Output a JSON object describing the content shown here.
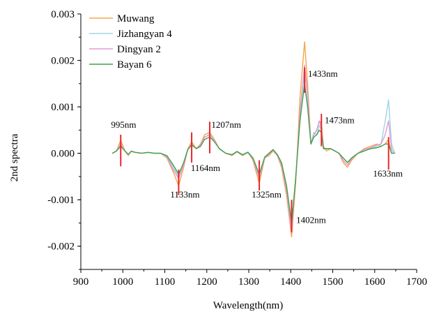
{
  "chart_data": {
    "type": "line",
    "xlabel": "Wavelength(nm)",
    "ylabel": "2nd spectra",
    "xlim": [
      900,
      1700
    ],
    "ylim": [
      -0.0025,
      0.003
    ],
    "x_ticks": [
      900,
      1000,
      1100,
      1200,
      1300,
      1400,
      1500,
      1600,
      1700
    ],
    "x_tick_labels": [
      "900",
      "1000",
      "1100",
      "1200",
      "1300",
      "1400",
      "1500",
      "1600",
      "1700"
    ],
    "y_ticks": [
      -0.002,
      -0.001,
      0.0,
      0.001,
      0.002,
      0.003
    ],
    "y_tick_labels": [
      "-0.002",
      "-0.001",
      "0.000",
      "0.001",
      "0.002",
      "0.003"
    ],
    "legend_position": "top-left",
    "series": [
      {
        "name": "Muwang",
        "color": "#f5a54a",
        "points": [
          [
            975,
            0.0
          ],
          [
            985,
            5e-05
          ],
          [
            995,
            0.00028
          ],
          [
            1005,
            5e-05
          ],
          [
            1013,
            -5e-05
          ],
          [
            1020,
            5e-05
          ],
          [
            1030,
            2e-05
          ],
          [
            1045,
            0.0
          ],
          [
            1060,
            2e-05
          ],
          [
            1075,
            0.0
          ],
          [
            1090,
            0.0
          ],
          [
            1105,
            -0.0001
          ],
          [
            1120,
            -0.0004
          ],
          [
            1133,
            -0.0007
          ],
          [
            1145,
            -0.0003
          ],
          [
            1155,
            0.0001
          ],
          [
            1164,
            0.00025
          ],
          [
            1175,
            0.0001
          ],
          [
            1185,
            0.0002
          ],
          [
            1195,
            0.0004
          ],
          [
            1207,
            0.00045
          ],
          [
            1218,
            0.0003
          ],
          [
            1230,
            0.0001
          ],
          [
            1245,
            0.0
          ],
          [
            1260,
            -5e-05
          ],
          [
            1272,
            3e-05
          ],
          [
            1285,
            -5e-05
          ],
          [
            1298,
            2e-05
          ],
          [
            1310,
            -0.00015
          ],
          [
            1325,
            -0.00065
          ],
          [
            1338,
            -0.0001
          ],
          [
            1348,
            -5e-05
          ],
          [
            1358,
            5e-05
          ],
          [
            1368,
            -5e-05
          ],
          [
            1378,
            -0.0003
          ],
          [
            1390,
            -0.0009
          ],
          [
            1402,
            -0.0018
          ],
          [
            1412,
            -0.0006
          ],
          [
            1422,
            0.0012
          ],
          [
            1433,
            0.0024
          ],
          [
            1440,
            0.0015
          ],
          [
            1448,
            0.0002
          ],
          [
            1455,
            0.0004
          ],
          [
            1462,
            0.0005
          ],
          [
            1468,
            0.0007
          ],
          [
            1473,
            0.00065
          ],
          [
            1478,
            0.00015
          ],
          [
            1485,
            5e-05
          ],
          [
            1495,
            0.0001
          ],
          [
            1505,
            5e-05
          ],
          [
            1515,
            0.0
          ],
          [
            1525,
            -0.0002
          ],
          [
            1535,
            -0.0003
          ],
          [
            1545,
            -0.00015
          ],
          [
            1560,
            0.0
          ],
          [
            1575,
            0.0001
          ],
          [
            1590,
            0.00015
          ],
          [
            1605,
            0.0002
          ],
          [
            1615,
            0.00015
          ],
          [
            1625,
            0.0002
          ],
          [
            1633,
            0.0003
          ],
          [
            1640,
            0.0
          ]
        ]
      },
      {
        "name": "Jizhangyan 4",
        "color": "#9ed6e3",
        "points": [
          [
            975,
            0.0
          ],
          [
            985,
            5e-05
          ],
          [
            995,
            0.00018
          ],
          [
            1005,
            5e-05
          ],
          [
            1013,
            -3e-05
          ],
          [
            1020,
            5e-05
          ],
          [
            1030,
            2e-05
          ],
          [
            1045,
            0.0
          ],
          [
            1060,
            2e-05
          ],
          [
            1075,
            0.0
          ],
          [
            1090,
            0.0
          ],
          [
            1105,
            -5e-05
          ],
          [
            1120,
            -0.0003
          ],
          [
            1133,
            -0.0005
          ],
          [
            1145,
            -0.0002
          ],
          [
            1155,
            0.0001
          ],
          [
            1164,
            0.0002
          ],
          [
            1175,
            0.0001
          ],
          [
            1185,
            0.00015
          ],
          [
            1195,
            0.00035
          ],
          [
            1207,
            0.0004
          ],
          [
            1218,
            0.00028
          ],
          [
            1230,
            0.0001
          ],
          [
            1245,
            0.0
          ],
          [
            1260,
            -3e-05
          ],
          [
            1272,
            4e-05
          ],
          [
            1285,
            -3e-05
          ],
          [
            1298,
            3e-05
          ],
          [
            1310,
            -0.0001
          ],
          [
            1325,
            -0.0005
          ],
          [
            1338,
            -8e-05
          ],
          [
            1348,
            0.0
          ],
          [
            1358,
            8e-05
          ],
          [
            1368,
            -3e-05
          ],
          [
            1378,
            -0.0002
          ],
          [
            1390,
            -0.0007
          ],
          [
            1402,
            -0.0016
          ],
          [
            1412,
            -0.0005
          ],
          [
            1422,
            0.0008
          ],
          [
            1433,
            0.0018
          ],
          [
            1440,
            0.0012
          ],
          [
            1448,
            0.0002
          ],
          [
            1455,
            0.00045
          ],
          [
            1462,
            0.0004
          ],
          [
            1468,
            0.0006
          ],
          [
            1473,
            0.0005
          ],
          [
            1478,
            0.0001
          ],
          [
            1485,
            0.0001
          ],
          [
            1495,
            0.0001
          ],
          [
            1505,
            5e-05
          ],
          [
            1515,
            0.0
          ],
          [
            1525,
            -0.0001
          ],
          [
            1535,
            -0.0002
          ],
          [
            1545,
            -0.0001
          ],
          [
            1560,
            0.0
          ],
          [
            1575,
            5e-05
          ],
          [
            1590,
            0.0001
          ],
          [
            1605,
            0.00015
          ],
          [
            1615,
            0.0002
          ],
          [
            1625,
            0.0007
          ],
          [
            1633,
            0.00115
          ],
          [
            1640,
            0.0002
          ],
          [
            1648,
            0.0
          ]
        ]
      },
      {
        "name": "Dingyan 2",
        "color": "#e39ad6",
        "points": [
          [
            975,
            0.0
          ],
          [
            985,
            5e-05
          ],
          [
            995,
            0.0002
          ],
          [
            1005,
            5e-05
          ],
          [
            1013,
            -3e-05
          ],
          [
            1020,
            5e-05
          ],
          [
            1030,
            2e-05
          ],
          [
            1045,
            0.0
          ],
          [
            1060,
            2e-05
          ],
          [
            1075,
            0.0
          ],
          [
            1090,
            0.0
          ],
          [
            1105,
            -8e-05
          ],
          [
            1120,
            -0.00035
          ],
          [
            1133,
            -0.00055
          ],
          [
            1145,
            -0.00025
          ],
          [
            1155,
            0.0001
          ],
          [
            1164,
            0.0002
          ],
          [
            1175,
            0.0001
          ],
          [
            1185,
            0.00018
          ],
          [
            1195,
            0.00035
          ],
          [
            1207,
            0.0004
          ],
          [
            1218,
            0.00028
          ],
          [
            1230,
            0.0001
          ],
          [
            1245,
            0.0
          ],
          [
            1260,
            -4e-05
          ],
          [
            1272,
            3e-05
          ],
          [
            1285,
            -4e-05
          ],
          [
            1298,
            2e-05
          ],
          [
            1310,
            -0.00012
          ],
          [
            1325,
            -0.00055
          ],
          [
            1338,
            -0.0001
          ],
          [
            1348,
            -2e-05
          ],
          [
            1358,
            6e-05
          ],
          [
            1368,
            -4e-05
          ],
          [
            1378,
            -0.00025
          ],
          [
            1390,
            -0.0008
          ],
          [
            1402,
            -0.0017
          ],
          [
            1412,
            -0.0005
          ],
          [
            1422,
            0.0009
          ],
          [
            1433,
            0.0019
          ],
          [
            1440,
            0.0013
          ],
          [
            1448,
            0.0002
          ],
          [
            1455,
            0.0004
          ],
          [
            1462,
            0.0005
          ],
          [
            1468,
            0.0007
          ],
          [
            1473,
            0.00055
          ],
          [
            1478,
            0.0001
          ],
          [
            1485,
            0.0001
          ],
          [
            1495,
            0.0001
          ],
          [
            1505,
            5e-05
          ],
          [
            1515,
            0.0
          ],
          [
            1525,
            -0.00015
          ],
          [
            1535,
            -0.00025
          ],
          [
            1545,
            -0.00012
          ],
          [
            1560,
            0.0
          ],
          [
            1575,
            8e-05
          ],
          [
            1590,
            0.00012
          ],
          [
            1605,
            0.00018
          ],
          [
            1615,
            0.0002
          ],
          [
            1625,
            0.0004
          ],
          [
            1633,
            0.0007
          ],
          [
            1640,
            0.0001
          ],
          [
            1645,
            0.0
          ]
        ]
      },
      {
        "name": "Bayan 6",
        "color": "#3fa14a",
        "points": [
          [
            975,
            0.0
          ],
          [
            985,
            5e-05
          ],
          [
            995,
            0.00015
          ],
          [
            1005,
            5e-05
          ],
          [
            1013,
            -2e-05
          ],
          [
            1020,
            4e-05
          ],
          [
            1030,
            2e-05
          ],
          [
            1045,
            0.0
          ],
          [
            1060,
            2e-05
          ],
          [
            1075,
            0.0
          ],
          [
            1090,
            0.0
          ],
          [
            1105,
            -5e-05
          ],
          [
            1120,
            -0.00025
          ],
          [
            1133,
            -0.00045
          ],
          [
            1145,
            -0.0002
          ],
          [
            1155,
            8e-05
          ],
          [
            1164,
            0.00018
          ],
          [
            1175,
            0.0001
          ],
          [
            1185,
            0.00015
          ],
          [
            1195,
            0.0003
          ],
          [
            1207,
            0.00035
          ],
          [
            1218,
            0.00025
          ],
          [
            1230,
            0.0001
          ],
          [
            1245,
            0.0
          ],
          [
            1260,
            -3e-05
          ],
          [
            1272,
            4e-05
          ],
          [
            1285,
            -3e-05
          ],
          [
            1298,
            2e-05
          ],
          [
            1310,
            -0.0001
          ],
          [
            1325,
            -0.00045
          ],
          [
            1338,
            -8e-05
          ],
          [
            1348,
            0.0
          ],
          [
            1358,
            8e-05
          ],
          [
            1368,
            -3e-05
          ],
          [
            1378,
            -0.0002
          ],
          [
            1390,
            -0.0007
          ],
          [
            1402,
            -0.0015
          ],
          [
            1412,
            -0.0005
          ],
          [
            1422,
            0.0007
          ],
          [
            1433,
            0.0015
          ],
          [
            1440,
            0.001
          ],
          [
            1448,
            0.0002
          ],
          [
            1455,
            0.00035
          ],
          [
            1462,
            0.0004
          ],
          [
            1468,
            0.0005
          ],
          [
            1473,
            0.00045
          ],
          [
            1478,
            0.0001
          ],
          [
            1485,
            0.0001
          ],
          [
            1495,
            0.0001
          ],
          [
            1505,
            5e-05
          ],
          [
            1515,
            0.0
          ],
          [
            1525,
            -0.0001
          ],
          [
            1535,
            -0.0002
          ],
          [
            1545,
            -0.0001
          ],
          [
            1560,
            0.0
          ],
          [
            1575,
            5e-05
          ],
          [
            1590,
            0.0001
          ],
          [
            1605,
            0.00012
          ],
          [
            1615,
            0.00015
          ],
          [
            1625,
            0.0002
          ],
          [
            1633,
            0.0002
          ],
          [
            1640,
            0.0
          ],
          [
            1648,
            0.0
          ]
        ]
      }
    ],
    "markers": {
      "color": "#e8272a",
      "items": [
        {
          "x": 995,
          "y1": -0.00028,
          "y2": 0.0004,
          "label": "995nm",
          "label_x": 972,
          "label_y": 0.00055
        },
        {
          "x": 1133,
          "y1": -0.0009,
          "y2": -0.00035,
          "label": "1133nm",
          "label_x": 1113,
          "label_y": -0.00095
        },
        {
          "x": 1164,
          "y1": -0.0002,
          "y2": 0.00045,
          "label": "1164nm",
          "label_x": 1162,
          "label_y": -0.00038
        },
        {
          "x": 1207,
          "y1": 0.0,
          "y2": 0.00068,
          "label": "1207nm",
          "label_x": 1211,
          "label_y": 0.00055
        },
        {
          "x": 1325,
          "y1": -0.0008,
          "y2": -0.00015,
          "label": "1325nm",
          "label_x": 1307,
          "label_y": -0.00095
        },
        {
          "x": 1402,
          "y1": -0.0017,
          "y2": -0.001,
          "label": "1402nm",
          "label_x": 1413,
          "label_y": -0.0015
        },
        {
          "x": 1433,
          "y1": 0.0013,
          "y2": 0.00185,
          "label": "1433nm",
          "label_x": 1441,
          "label_y": 0.00165
        },
        {
          "x": 1473,
          "y1": 0.00015,
          "y2": 0.00085,
          "label": "1473nm",
          "label_x": 1481,
          "label_y": 0.00065
        },
        {
          "x": 1633,
          "y1": -0.00035,
          "y2": 0.00035,
          "label": "1633nm",
          "label_x": 1596,
          "label_y": -0.0005
        }
      ]
    }
  }
}
